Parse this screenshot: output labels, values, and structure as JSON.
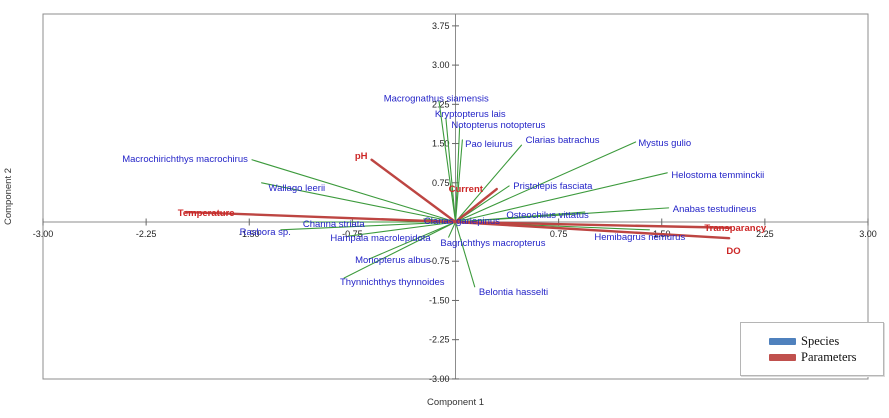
{
  "figure": {
    "title": ""
  },
  "legend": {
    "items": [
      {
        "label": "Species",
        "color": "#4f81bd"
      },
      {
        "label": "Parameters",
        "color": "#c0504d"
      }
    ]
  },
  "chart_data": {
    "type": "scatter",
    "subtype": "ordination-biplot-vectors",
    "title": "",
    "xlabel": "Component 1",
    "ylabel": "Component 2",
    "xlim": [
      -3.0,
      3.0
    ],
    "ylim": [
      -3.0,
      4.0
    ],
    "grid": false,
    "legend_position": "bottom-right",
    "x_ticks": [
      {
        "value": -3.0,
        "label": "-3.00"
      },
      {
        "value": -2.25,
        "label": "-2.25"
      },
      {
        "value": -1.5,
        "label": "-1.50"
      },
      {
        "value": -0.75,
        "label": "-0.75"
      },
      {
        "value": 0.75,
        "label": "0.75"
      },
      {
        "value": 1.5,
        "label": "1.50"
      },
      {
        "value": 2.25,
        "label": "2.25"
      },
      {
        "value": 3.0,
        "label": "3.00"
      }
    ],
    "y_ticks": [
      {
        "value": 3.75,
        "label": "3.75"
      },
      {
        "value": 3.0,
        "label": "3.00"
      },
      {
        "value": 2.25,
        "label": "2.25"
      },
      {
        "value": 1.5,
        "label": "1.50"
      },
      {
        "value": 0.75,
        "label": "0.75"
      },
      {
        "value": -0.75,
        "label": "-0.75"
      },
      {
        "value": -1.5,
        "label": "-1.50"
      },
      {
        "value": -2.25,
        "label": "-2.25"
      },
      {
        "value": -3.0,
        "label": "-3.00"
      }
    ],
    "series": [
      {
        "name": "Species",
        "line_color": "#3c9a3c",
        "label_color": "#2424c8",
        "line_width": 1.1,
        "bold_labels": false,
        "points": [
          {
            "label": "Macrognathus siamensis",
            "x": -0.12,
            "y": 2.31,
            "label_x": -0.14,
            "label_y": 2.3,
            "anchor": "middle"
          },
          {
            "label": "Kryptopterus lais",
            "x": -0.07,
            "y": 1.99,
            "label_x": -0.15,
            "label_y": 2.01,
            "anchor": "start"
          },
          {
            "label": "Notopterus notopterus",
            "x": 0.03,
            "y": 1.82,
            "label_x": -0.03,
            "label_y": 1.8,
            "anchor": "start"
          },
          {
            "label": "Pao leiurus",
            "x": 0.05,
            "y": 1.57,
            "label_x": 0.07,
            "label_y": 1.43,
            "anchor": "start"
          },
          {
            "label": "Clarias batrachus",
            "x": 0.48,
            "y": 1.47,
            "label_x": 0.51,
            "label_y": 1.51,
            "anchor": "start"
          },
          {
            "label": "Mystus gulio",
            "x": 1.31,
            "y": 1.53,
            "label_x": 1.33,
            "label_y": 1.45,
            "anchor": "start"
          },
          {
            "label": "Helostoma temminckii",
            "x": 1.54,
            "y": 0.94,
            "label_x": 1.57,
            "label_y": 0.84,
            "anchor": "start"
          },
          {
            "label": "Anabas testudineus",
            "x": 1.55,
            "y": 0.27,
            "label_x": 1.58,
            "label_y": 0.19,
            "anchor": "start"
          },
          {
            "label": "Pristolepis fasciata",
            "x": 0.39,
            "y": 0.69,
            "label_x": 0.42,
            "label_y": 0.63,
            "anchor": "start"
          },
          {
            "label": "Osteochilus vittatus",
            "x": 0.94,
            "y": 0.19,
            "label_x": 0.37,
            "label_y": 0.08,
            "anchor": "start"
          },
          {
            "label": "Hemibagrus nemurus",
            "x": 1.41,
            "y": -0.15,
            "label_x": 1.01,
            "label_y": -0.34,
            "anchor": "start"
          },
          {
            "label": "Clarias gariepinus",
            "x": -0.23,
            "y": 0.06,
            "label_x": -0.23,
            "label_y": -0.04,
            "anchor": "start"
          },
          {
            "label": "Channa striata",
            "x": -1.11,
            "y": 0.0,
            "label_x": -1.11,
            "label_y": -0.1,
            "anchor": "start"
          },
          {
            "label": "Rasbora sp.",
            "x": -1.27,
            "y": -0.15,
            "label_x": -1.57,
            "label_y": -0.25,
            "anchor": "start"
          },
          {
            "label": "Wallago leerii",
            "x": -1.41,
            "y": 0.75,
            "label_x": -1.36,
            "label_y": 0.59,
            "anchor": "start"
          },
          {
            "label": "Macrochirichthys macrochirus",
            "x": -1.48,
            "y": 1.19,
            "label_x": -1.51,
            "label_y": 1.15,
            "anchor": "end"
          },
          {
            "label": "Hampala macrolepidota",
            "x": -0.78,
            "y": -0.27,
            "label_x": -0.91,
            "label_y": -0.36,
            "anchor": "start"
          },
          {
            "label": "Monopterus albus",
            "x": -0.63,
            "y": -0.71,
            "label_x": -0.73,
            "label_y": -0.78,
            "anchor": "start"
          },
          {
            "label": "Thynnichthys thynnoides",
            "x": -0.81,
            "y": -1.07,
            "label_x": -0.84,
            "label_y": -1.2,
            "anchor": "start"
          },
          {
            "label": "Bagrichthys macropterus",
            "x": -0.05,
            "y": -0.29,
            "label_x": -0.11,
            "label_y": -0.46,
            "anchor": "start"
          },
          {
            "label": "Belontia hasselti",
            "x": 0.14,
            "y": -1.24,
            "label_x": 0.17,
            "label_y": -1.4,
            "anchor": "start"
          }
        ]
      },
      {
        "name": "Parameters",
        "line_color": "#bd4542",
        "label_color": "#cc2626",
        "line_width": 2.4,
        "bold_labels": true,
        "points": [
          {
            "label": "pH",
            "x": -0.61,
            "y": 1.19,
            "label_x": -0.64,
            "label_y": 1.2,
            "anchor": "end"
          },
          {
            "label": "Current",
            "x": 0.3,
            "y": 0.63,
            "label_x": -0.05,
            "label_y": 0.57,
            "anchor": "start"
          },
          {
            "label": "Temperature",
            "x": -1.96,
            "y": 0.19,
            "label_x": -2.02,
            "label_y": 0.11,
            "anchor": "start"
          },
          {
            "label": "Transparancy",
            "x": 2.0,
            "y": -0.11,
            "label_x": 1.81,
            "label_y": -0.17,
            "anchor": "start"
          },
          {
            "label": "DO",
            "x": 1.99,
            "y": -0.31,
            "label_x": 1.97,
            "label_y": -0.61,
            "anchor": "start"
          }
        ]
      }
    ]
  }
}
